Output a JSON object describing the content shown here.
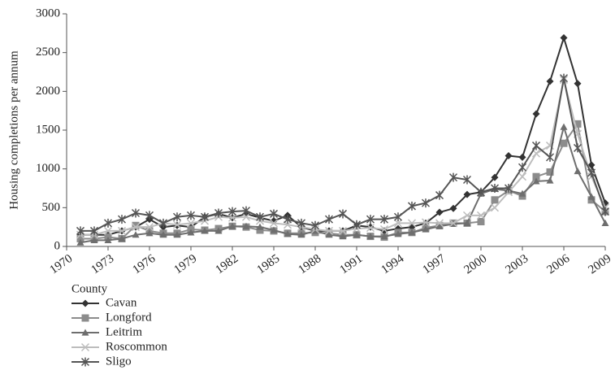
{
  "chart_data": {
    "type": "line",
    "ylabel": "Housing completions per annum",
    "legend_title": "County",
    "legend": "bottom-left",
    "x": [
      1971,
      1972,
      1973,
      1974,
      1975,
      1976,
      1977,
      1978,
      1979,
      1980,
      1981,
      1982,
      1983,
      1984,
      1985,
      1986,
      1987,
      1988,
      1989,
      1990,
      1991,
      1992,
      1993,
      1994,
      1995,
      1996,
      1997,
      1998,
      1999,
      2000,
      2001,
      2002,
      2003,
      2004,
      2005,
      2006,
      2007,
      2008,
      2009
    ],
    "xlim": [
      1970,
      2009
    ],
    "xticks": [
      1970,
      1973,
      1976,
      1979,
      1982,
      1985,
      1988,
      1991,
      1994,
      1997,
      2000,
      2003,
      2006,
      2009
    ],
    "ylim": [
      0,
      3000
    ],
    "yticks": [
      0,
      500,
      1000,
      1500,
      2000,
      2500,
      3000
    ],
    "series": [
      {
        "name": "Cavan",
        "color": "#333333",
        "marker": "diamond",
        "values": [
          150,
          150,
          150,
          200,
          250,
          350,
          250,
          270,
          250,
          380,
          420,
          370,
          420,
          370,
          330,
          400,
          250,
          200,
          200,
          200,
          270,
          250,
          200,
          230,
          250,
          300,
          440,
          490,
          670,
          700,
          890,
          1170,
          1150,
          1710,
          2130,
          2690,
          2100,
          1050,
          560
        ]
      },
      {
        "name": "Longford",
        "color": "#8c8c8c",
        "marker": "square",
        "values": [
          100,
          100,
          120,
          100,
          270,
          200,
          170,
          170,
          220,
          210,
          230,
          260,
          250,
          210,
          200,
          170,
          170,
          180,
          170,
          150,
          150,
          130,
          120,
          180,
          180,
          240,
          270,
          300,
          300,
          320,
          600,
          720,
          650,
          900,
          960,
          1330,
          1580,
          600,
          450
        ]
      },
      {
        "name": "Leitrim",
        "color": "#6e6e6e",
        "marker": "triangle",
        "values": [
          50,
          80,
          80,
          100,
          150,
          170,
          150,
          150,
          180,
          200,
          200,
          260,
          260,
          250,
          210,
          160,
          150,
          200,
          150,
          130,
          150,
          130,
          130,
          160,
          180,
          220,
          260,
          290,
          300,
          680,
          740,
          720,
          680,
          840,
          850,
          1540,
          970,
          640,
          300
        ]
      },
      {
        "name": "Roscommon",
        "color": "#bdbdbd",
        "marker": "x",
        "values": [
          150,
          150,
          200,
          200,
          250,
          250,
          300,
          280,
          300,
          330,
          380,
          370,
          380,
          330,
          300,
          280,
          250,
          220,
          200,
          200,
          230,
          240,
          220,
          300,
          300,
          310,
          300,
          300,
          400,
          400,
          500,
          700,
          900,
          1200,
          1300,
          2150,
          1450,
          900,
          500
        ]
      },
      {
        "name": "Sligo",
        "color": "#555555",
        "marker": "star",
        "values": [
          200,
          200,
          300,
          350,
          430,
          400,
          300,
          380,
          400,
          380,
          430,
          450,
          460,
          380,
          420,
          350,
          300,
          270,
          350,
          420,
          280,
          350,
          350,
          380,
          520,
          560,
          660,
          890,
          860,
          700,
          750,
          750,
          1020,
          1300,
          1150,
          2170,
          1270,
          950,
          450
        ]
      }
    ]
  }
}
